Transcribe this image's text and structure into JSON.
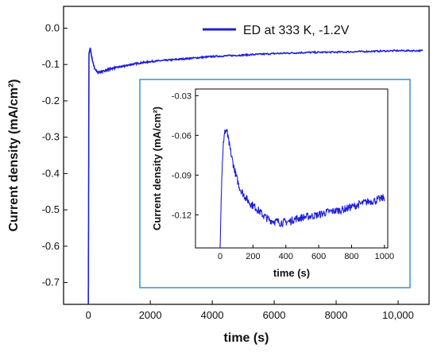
{
  "chart_data": [
    {
      "type": "line",
      "xlabel": "time (s)",
      "ylabel": "Current density (mA/cm²)",
      "xlim": [
        -800,
        11000
      ],
      "ylim": [
        -0.76,
        0.06
      ],
      "xticks": [
        0,
        2000,
        4000,
        6000,
        8000,
        10000
      ],
      "xtick_labels": [
        "0",
        "2000",
        "4000",
        "6000",
        "8000",
        "10,000"
      ],
      "yticks": [
        0.0,
        -0.1,
        -0.2,
        -0.3,
        -0.4,
        -0.5,
        -0.6,
        -0.7
      ],
      "ytick_labels": [
        "0.0",
        "-0.1",
        "-0.2",
        "-0.3",
        "-0.4",
        "-0.5",
        "-0.6",
        "-0.7"
      ],
      "legend": {
        "position": "top-right",
        "entries": [
          "ED at 333 K, -1.2V"
        ]
      },
      "series": [
        {
          "name": "ED at 333 K, -1.2V",
          "color": "#1f1fd6",
          "x": [
            0,
            20,
            60,
            120,
            200,
            300,
            400,
            500,
            600,
            800,
            1000,
            1500,
            2000,
            3000,
            4000,
            5000,
            6000,
            7000,
            8000,
            9000,
            10000,
            10800
          ],
          "y": [
            -0.76,
            -0.07,
            -0.055,
            -0.085,
            -0.11,
            -0.122,
            -0.12,
            -0.118,
            -0.115,
            -0.11,
            -0.107,
            -0.098,
            -0.092,
            -0.085,
            -0.078,
            -0.074,
            -0.07,
            -0.067,
            -0.066,
            -0.064,
            -0.062,
            -0.062
          ]
        }
      ]
    },
    {
      "type": "line",
      "inset": true,
      "xlabel": "time (s)",
      "ylabel": "Current density (mA/cm²)",
      "xlim": [
        -150,
        1020
      ],
      "ylim": [
        -0.145,
        -0.025
      ],
      "xticks": [
        0,
        200,
        400,
        600,
        800,
        1000
      ],
      "xtick_labels": [
        "0",
        "200",
        "400",
        "600",
        "800",
        "1000"
      ],
      "yticks": [
        -0.03,
        -0.06,
        -0.09,
        -0.12
      ],
      "ytick_labels": [
        "-0.03",
        "-0.06",
        "-0.09",
        "-0.12"
      ],
      "series": [
        {
          "name": "",
          "color": "#1f1fd6",
          "x": [
            0,
            10,
            20,
            30,
            40,
            50,
            60,
            70,
            80,
            100,
            120,
            150,
            180,
            220,
            260,
            300,
            340,
            380,
            420,
            460,
            500,
            550,
            600,
            650,
            700,
            750,
            800,
            850,
            900,
            950,
            1000
          ],
          "y": [
            -0.145,
            -0.09,
            -0.065,
            -0.057,
            -0.056,
            -0.063,
            -0.07,
            -0.076,
            -0.082,
            -0.092,
            -0.1,
            -0.106,
            -0.111,
            -0.115,
            -0.12,
            -0.124,
            -0.125,
            -0.126,
            -0.125,
            -0.123,
            -0.122,
            -0.121,
            -0.12,
            -0.118,
            -0.117,
            -0.116,
            -0.114,
            -0.112,
            -0.11,
            -0.109,
            -0.107
          ]
        }
      ]
    }
  ]
}
